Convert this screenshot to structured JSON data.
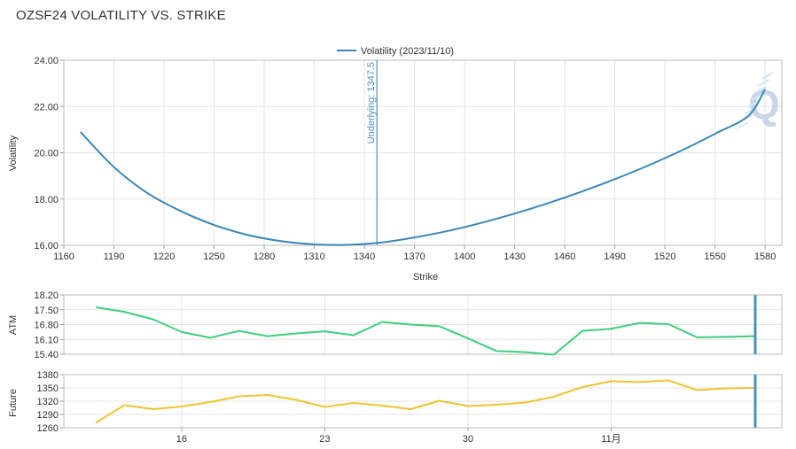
{
  "page": {
    "title": "OZSF24 VOLATILITY VS. STRIKE"
  },
  "colors": {
    "volatility": "#3a87b8",
    "atm": "#3dd07a",
    "future": "#f0c330",
    "marker": "#4a90c0",
    "grid": "#e4e4e4",
    "watermark": "#c9d6e6"
  },
  "watermark": {
    "letter": "Q"
  },
  "chart_data": [
    {
      "type": "line",
      "title": "",
      "legend": {
        "position": "top-center",
        "label": "Volatility (2023/11/10)"
      },
      "xlabel": "Strike",
      "ylabel": "Volatility",
      "xlim": [
        1160,
        1590
      ],
      "ylim": [
        16,
        24
      ],
      "xticks": [
        1160,
        1190,
        1220,
        1250,
        1280,
        1310,
        1340,
        1370,
        1400,
        1430,
        1460,
        1490,
        1520,
        1550,
        1580
      ],
      "yticks": [
        "16.00",
        "18.00",
        "20.00",
        "22.00",
        "24.00"
      ],
      "grid": true,
      "series": [
        {
          "name": "Volatility (2023/11/10)",
          "x": [
            1170,
            1190,
            1210,
            1230,
            1250,
            1270,
            1290,
            1310,
            1330,
            1350,
            1370,
            1390,
            1410,
            1430,
            1450,
            1470,
            1490,
            1510,
            1530,
            1550,
            1570,
            1580
          ],
          "y": [
            20.9,
            19.38,
            18.26,
            17.48,
            16.88,
            16.45,
            16.18,
            16.04,
            16.02,
            16.12,
            16.34,
            16.62,
            16.97,
            17.37,
            17.82,
            18.32,
            18.86,
            19.45,
            20.1,
            20.82,
            21.6,
            22.75
          ]
        }
      ],
      "annotations": [
        {
          "type": "vline",
          "x": 1347.5,
          "label": "Underlying: 1347.5"
        }
      ]
    },
    {
      "type": "line",
      "title": "",
      "xlabel": "",
      "ylabel": "ATM",
      "ylim": [
        15.4,
        18.2
      ],
      "yticks": [
        "15.40",
        "16.10",
        "16.80",
        "17.50",
        "18.20"
      ],
      "grid": true,
      "series": [
        {
          "name": "ATM",
          "x": [
            0,
            1,
            2,
            3,
            4,
            5,
            6,
            7,
            8,
            9,
            10,
            11,
            12,
            13,
            14,
            15,
            16,
            17,
            18,
            19,
            20,
            21,
            22,
            23
          ],
          "y": [
            17.62,
            17.4,
            17.05,
            16.45,
            16.18,
            16.5,
            16.25,
            16.38,
            16.48,
            16.3,
            16.92,
            16.8,
            16.72,
            16.15,
            15.55,
            15.5,
            15.38,
            16.5,
            16.6,
            16.88,
            16.82,
            16.2,
            16.22,
            16.25
          ]
        }
      ]
    },
    {
      "type": "line",
      "title": "",
      "xlabel": "",
      "ylabel": "Future",
      "ylim": [
        1260,
        1380
      ],
      "yticks": [
        1260,
        1290,
        1320,
        1350,
        1380
      ],
      "xticklabels": [
        "16",
        "23",
        "30",
        "11月"
      ],
      "grid": true,
      "series": [
        {
          "name": "Future",
          "x": [
            0,
            1,
            2,
            3,
            4,
            5,
            6,
            7,
            8,
            9,
            10,
            11,
            12,
            13,
            14,
            15,
            16,
            17,
            18,
            19,
            20,
            21,
            22,
            23
          ],
          "y": [
            1271,
            1311,
            1302,
            1308,
            1318,
            1331,
            1334,
            1323,
            1307,
            1316,
            1310,
            1302,
            1321,
            1309,
            1312,
            1317,
            1330,
            1352,
            1365,
            1363,
            1367,
            1345,
            1349,
            1350
          ]
        }
      ]
    }
  ]
}
